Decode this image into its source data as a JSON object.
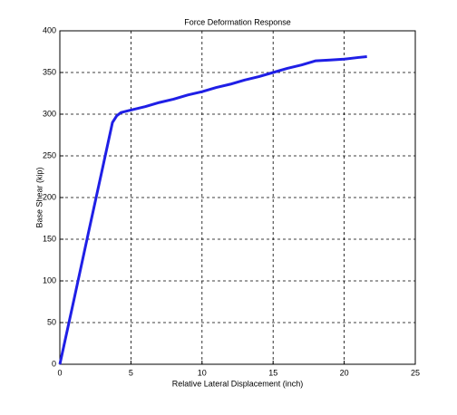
{
  "chart_data": {
    "type": "line",
    "title": "Force Deformation Response",
    "x_label": "Relative Lateral Displacement (inch)",
    "y_label": "Base Shear (kip)",
    "x": [
      0,
      1,
      2,
      3,
      3.7,
      4.0,
      4.3,
      5,
      6,
      7,
      8,
      9,
      10,
      11,
      12,
      13,
      14,
      15,
      16,
      17,
      18,
      19,
      20,
      21,
      21.6
    ],
    "series": [
      {
        "name": "Base Shear",
        "color": "#1f1fe6",
        "values": [
          0,
          78,
          157,
          235,
          290,
          298,
          302,
          305,
          309,
          314,
          318,
          323,
          327,
          332,
          336,
          341,
          345,
          350,
          355,
          359,
          364,
          365,
          366,
          368,
          369
        ]
      }
    ],
    "xlim": [
      0,
      25
    ],
    "xticks": [
      0,
      5,
      10,
      15,
      20,
      25
    ],
    "ylim": [
      0,
      400
    ],
    "yticks": [
      0,
      50,
      100,
      150,
      200,
      250,
      300,
      350,
      400
    ],
    "grid": true
  }
}
